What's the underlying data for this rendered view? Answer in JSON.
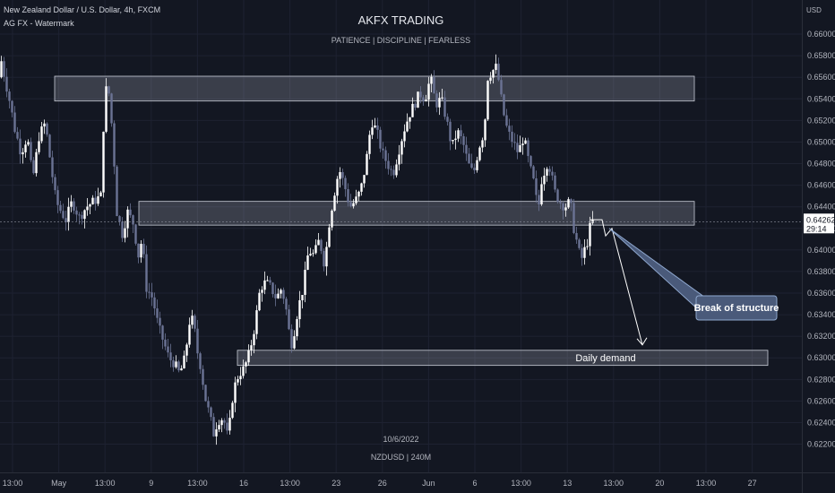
{
  "header": {
    "symbol_line": "New Zealand Dollar / U.S. Dollar, 4h, FXCM",
    "watermark_line": "AG FX - Watermark",
    "title": "AKFX TRADING",
    "subtitle": "PATIENCE  |  DISCIPLINE  |  FEARLESS",
    "date_stamp": "10/6/2022",
    "instrument_stamp": "NZDUSD | 240M",
    "currency": "USD"
  },
  "price_tag": {
    "value": "0.64262",
    "countdown": "29:14"
  },
  "chart_data": {
    "type": "candlestick",
    "ylim": [
      0.6208,
      0.6615
    ],
    "y_ticks": [
      "0.66000",
      "0.65800",
      "0.65600",
      "0.65400",
      "0.65200",
      "0.65000",
      "0.64800",
      "0.64600",
      "0.64400",
      "0.64200",
      "0.64000",
      "0.63800",
      "0.63600",
      "0.63400",
      "0.63200",
      "0.63000",
      "0.62800",
      "0.62600",
      "0.62400",
      "0.62200"
    ],
    "x_ticks": [
      "13:00",
      "May",
      "13:00",
      "9",
      "13:00",
      "16",
      "13:00",
      "23",
      "26",
      "Jun",
      "6",
      "13:00",
      "13",
      "13:00",
      "20",
      "13:00",
      "27"
    ],
    "last_price": 0.64262,
    "path": [
      [
        0,
        0.656
      ],
      [
        3,
        0.6575
      ],
      [
        8,
        0.6555
      ],
      [
        13,
        0.6535
      ],
      [
        18,
        0.6512
      ],
      [
        25,
        0.649
      ],
      [
        32,
        0.6505
      ],
      [
        38,
        0.6465
      ],
      [
        45,
        0.6505
      ],
      [
        52,
        0.6518
      ],
      [
        58,
        0.648
      ],
      [
        64,
        0.6445
      ],
      [
        70,
        0.6435
      ],
      [
        75,
        0.6428
      ],
      [
        82,
        0.6445
      ],
      [
        90,
        0.643
      ],
      [
        98,
        0.644
      ],
      [
        106,
        0.6445
      ],
      [
        114,
        0.645
      ],
      [
        118,
        0.6535
      ],
      [
        121,
        0.6555
      ],
      [
        124,
        0.654
      ],
      [
        128,
        0.6495
      ],
      [
        132,
        0.6435
      ],
      [
        138,
        0.6415
      ],
      [
        144,
        0.6435
      ],
      [
        150,
        0.6425
      ],
      [
        156,
        0.6395
      ],
      [
        160,
        0.641
      ],
      [
        165,
        0.6365
      ],
      [
        172,
        0.6355
      ],
      [
        178,
        0.633
      ],
      [
        184,
        0.6315
      ],
      [
        190,
        0.63
      ],
      [
        196,
        0.6295
      ],
      [
        202,
        0.6285
      ],
      [
        208,
        0.63
      ],
      [
        214,
        0.634
      ],
      [
        218,
        0.633
      ],
      [
        222,
        0.6305
      ],
      [
        226,
        0.629
      ],
      [
        230,
        0.6265
      ],
      [
        236,
        0.6245
      ],
      [
        240,
        0.623
      ],
      [
        244,
        0.624
      ],
      [
        248,
        0.6245
      ],
      [
        252,
        0.624
      ],
      [
        256,
        0.6225
      ],
      [
        262,
        0.627
      ],
      [
        268,
        0.6285
      ],
      [
        274,
        0.629
      ],
      [
        280,
        0.6305
      ],
      [
        286,
        0.633
      ],
      [
        292,
        0.6365
      ],
      [
        298,
        0.637
      ],
      [
        304,
        0.6365
      ],
      [
        310,
        0.6355
      ],
      [
        316,
        0.6365
      ],
      [
        322,
        0.634
      ],
      [
        326,
        0.631
      ],
      [
        330,
        0.6325
      ],
      [
        334,
        0.6345
      ],
      [
        340,
        0.6365
      ],
      [
        346,
        0.64
      ],
      [
        352,
        0.6395
      ],
      [
        358,
        0.641
      ],
      [
        364,
        0.6385
      ],
      [
        368,
        0.642
      ],
      [
        374,
        0.645
      ],
      [
        380,
        0.6475
      ],
      [
        386,
        0.646
      ],
      [
        392,
        0.644
      ],
      [
        398,
        0.6445
      ],
      [
        404,
        0.6455
      ],
      [
        410,
        0.648
      ],
      [
        416,
        0.652
      ],
      [
        422,
        0.651
      ],
      [
        428,
        0.649
      ],
      [
        434,
        0.648
      ],
      [
        440,
        0.647
      ],
      [
        446,
        0.649
      ],
      [
        452,
        0.651
      ],
      [
        458,
        0.6525
      ],
      [
        464,
        0.6535
      ],
      [
        470,
        0.6545
      ],
      [
        476,
        0.654
      ],
      [
        482,
        0.656
      ],
      [
        488,
        0.6535
      ],
      [
        494,
        0.654
      ],
      [
        500,
        0.652
      ],
      [
        506,
        0.6495
      ],
      [
        512,
        0.651
      ],
      [
        518,
        0.65
      ],
      [
        524,
        0.648
      ],
      [
        530,
        0.647
      ],
      [
        536,
        0.6495
      ],
      [
        542,
        0.651
      ],
      [
        546,
        0.656
      ],
      [
        550,
        0.6565
      ],
      [
        556,
        0.657
      ],
      [
        560,
        0.6545
      ],
      [
        564,
        0.6525
      ],
      [
        568,
        0.651
      ],
      [
        574,
        0.65
      ],
      [
        580,
        0.649
      ],
      [
        586,
        0.6505
      ],
      [
        592,
        0.648
      ],
      [
        598,
        0.646
      ],
      [
        602,
        0.6435
      ],
      [
        606,
        0.6465
      ],
      [
        612,
        0.648
      ],
      [
        616,
        0.6475
      ],
      [
        620,
        0.6455
      ],
      [
        626,
        0.6445
      ],
      [
        632,
        0.644
      ],
      [
        638,
        0.6445
      ],
      [
        642,
        0.642
      ],
      [
        646,
        0.6405
      ],
      [
        650,
        0.639
      ],
      [
        654,
        0.64
      ],
      [
        658,
        0.641
      ],
      [
        661,
        0.6426
      ]
    ],
    "zones": [
      {
        "label": "",
        "y0": 0.6538,
        "y1": 0.6561,
        "x0": 61,
        "x1": 775
      },
      {
        "label": "",
        "y0": 0.6423,
        "y1": 0.6445,
        "x0": 155,
        "x1": 775
      },
      {
        "label": "Daily demand",
        "y0": 0.6293,
        "y1": 0.6307,
        "x0": 265,
        "x1": 857
      }
    ],
    "projection": [
      [
        659,
        0.6428
      ],
      [
        672,
        0.6428
      ],
      [
        676,
        0.6413
      ],
      [
        683,
        0.642
      ],
      [
        717,
        0.6312
      ]
    ],
    "annotations": [
      {
        "text": "Break of structure",
        "anchor": [
          680,
          0.642
        ]
      },
      {
        "text": "Daily demand"
      }
    ]
  },
  "colors": {
    "background": "#131722",
    "candle_up": "#ffffff",
    "candle_down": "#6b7394",
    "zone_fill": "rgba(200,205,220,0.22)",
    "zone_stroke": "#c8ccd6",
    "callout_fill": "#4a5a7a",
    "callout_stroke": "#8fa8cf",
    "price_tag_fill": "#ffffff",
    "grid": "#1e2231"
  }
}
